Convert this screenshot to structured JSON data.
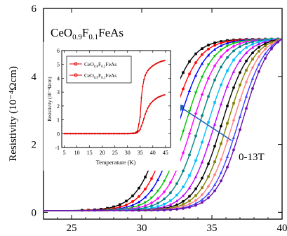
{
  "chart_data": [
    {
      "type": "scatter",
      "subtype": "line-with-markers",
      "title": "CeO0.9F0.1FeAs",
      "title_parts": [
        "CeO",
        "0.9",
        "F",
        "0.1",
        "FeAs"
      ],
      "ylabel": "Resistivity (10⁻⁴Ωcm)",
      "xlabel": "",
      "xlim": [
        23,
        40
      ],
      "ylim": [
        -0.2,
        6
      ],
      "x_ticks": [
        25,
        30,
        35,
        40
      ],
      "y_ticks": [
        0,
        2,
        4,
        6
      ],
      "grid": false,
      "annotation": {
        "text": "0-13T",
        "arrow": "pointing up-left across curves"
      },
      "field_series": [
        {
          "color": "#000000",
          "marker": "square",
          "midpoint": 31.6
        },
        {
          "color": "#ff0000",
          "marker": "circle",
          "midpoint": 32.1
        },
        {
          "color": "#0000ff",
          "marker": "triangle",
          "midpoint": 32.6
        },
        {
          "color": "#00c000",
          "marker": "triangle-down",
          "midpoint": 33.1
        },
        {
          "color": "#ff00ff",
          "marker": "diamond",
          "midpoint": 33.6
        },
        {
          "color": "#008080",
          "marker": "circle",
          "midpoint": 34.1
        },
        {
          "color": "#00bfff",
          "marker": "square",
          "midpoint": 34.7
        },
        {
          "color": "#c000ff",
          "marker": "triangle",
          "midpoint": 35.2
        },
        {
          "color": "#000000",
          "marker": "circle",
          "midpoint": 35.7
        },
        {
          "color": "#808000",
          "marker": "square",
          "midpoint": 36.1
        },
        {
          "color": "#ff8080",
          "marker": "diamond",
          "midpoint": 36.5
        },
        {
          "color": "#4040ff",
          "marker": "triangle",
          "midpoint": 36.9
        },
        {
          "color": "#6a0dad",
          "marker": "circle",
          "midpoint": 37.2
        }
      ],
      "y_max": 5.1
    },
    {
      "type": "line",
      "xlabel": "Temperature (K)",
      "ylabel": "Resistivity (10⁻⁴Ωcm)",
      "xlim": [
        4,
        47
      ],
      "ylim": [
        -1,
        6
      ],
      "x_ticks": [
        5,
        10,
        15,
        20,
        25,
        30,
        35,
        40,
        45
      ],
      "y_ticks": [
        -1,
        0,
        1,
        2,
        3,
        4,
        5,
        6
      ],
      "legend": "top-left",
      "series": [
        {
          "name": "CeO0.8F0.2FeAs",
          "name_parts": [
            "CeO",
            "0.8",
            "F",
            "0.2",
            "FeAs"
          ],
          "color": "#e00000",
          "x": [
            5,
            10,
            15,
            20,
            25,
            30,
            33,
            34,
            35,
            35.5,
            36,
            36.5,
            37,
            37.5,
            38,
            39,
            40,
            41,
            42,
            43,
            44,
            45
          ],
          "y": [
            0,
            0,
            0,
            0,
            0,
            0,
            0.05,
            0.2,
            1.2,
            2.6,
            3.4,
            3.9,
            4.2,
            4.4,
            4.55,
            4.75,
            4.9,
            5.02,
            5.12,
            5.2,
            5.25,
            5.3
          ]
        },
        {
          "name": "CeO0.9F0.1FeAs",
          "name_parts": [
            "CeO",
            "0.9",
            "F",
            "0.1",
            "FeAs"
          ],
          "color": "#e00000",
          "x": [
            5,
            10,
            15,
            20,
            25,
            30,
            33,
            34,
            35,
            36,
            37,
            38,
            39,
            40,
            41,
            42,
            43,
            44,
            45
          ],
          "y": [
            0,
            0,
            0,
            0,
            0,
            0,
            0.02,
            0.1,
            0.3,
            0.8,
            1.4,
            1.85,
            2.15,
            2.35,
            2.5,
            2.62,
            2.7,
            2.77,
            2.82
          ]
        }
      ]
    }
  ]
}
